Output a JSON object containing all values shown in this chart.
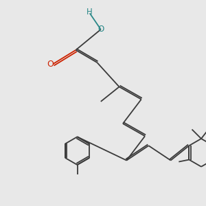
{
  "bg": "#e8e8e8",
  "bc": "#3a3a3a",
  "oc": "#cc2200",
  "ohc": "#2a8888",
  "lw": 1.3,
  "dg": 0.07,
  "xlim": [
    0,
    10
  ],
  "ylim": [
    0,
    10
  ],
  "figsize": [
    3.0,
    3.0
  ],
  "dpi": 100
}
